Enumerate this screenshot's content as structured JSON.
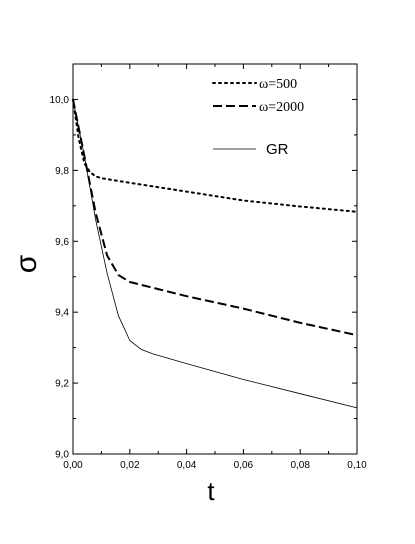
{
  "chart_data": {
    "type": "line",
    "xlabel": "t",
    "ylabel": "σ",
    "xlim": [
      0.0,
      0.1
    ],
    "ylim": [
      9.0,
      10.1
    ],
    "x_ticks": [
      0.0,
      0.02,
      0.04,
      0.06,
      0.08,
      0.1
    ],
    "x_tick_labels": [
      "0,00",
      "0,02",
      "0,04",
      "0,06",
      "0,08",
      "0,10"
    ],
    "y_ticks": [
      9.0,
      9.2,
      9.4,
      9.6,
      9.8,
      10.0
    ],
    "y_tick_labels": [
      "9,0",
      "9,2",
      "9,4",
      "9,6",
      "9,8",
      "10,0"
    ],
    "grid": false,
    "legend_position": "top-right",
    "series": [
      {
        "name": "ω=500",
        "style": "dotted",
        "x": [
          0.0,
          0.002,
          0.004,
          0.006,
          0.008,
          0.01,
          0.02,
          0.04,
          0.06,
          0.08,
          0.1
        ],
        "y": [
          10.0,
          9.89,
          9.82,
          9.795,
          9.783,
          9.778,
          9.765,
          9.74,
          9.715,
          9.698,
          9.683
        ]
      },
      {
        "name": "ω=2000",
        "style": "dashed",
        "x": [
          0.0,
          0.004,
          0.008,
          0.012,
          0.016,
          0.02,
          0.03,
          0.04,
          0.06,
          0.08,
          0.1
        ],
        "y": [
          10.0,
          9.84,
          9.68,
          9.56,
          9.505,
          9.485,
          9.465,
          9.445,
          9.41,
          9.37,
          9.335
        ]
      },
      {
        "name": "GR",
        "style": "solid",
        "x": [
          0.0,
          0.004,
          0.008,
          0.012,
          0.016,
          0.02,
          0.024,
          0.028,
          0.04,
          0.06,
          0.08,
          0.1
        ],
        "y": [
          10.0,
          9.84,
          9.66,
          9.51,
          9.39,
          9.32,
          9.295,
          9.283,
          9.255,
          9.21,
          9.17,
          9.13
        ]
      }
    ],
    "colors": {
      "line": "#000000"
    }
  }
}
